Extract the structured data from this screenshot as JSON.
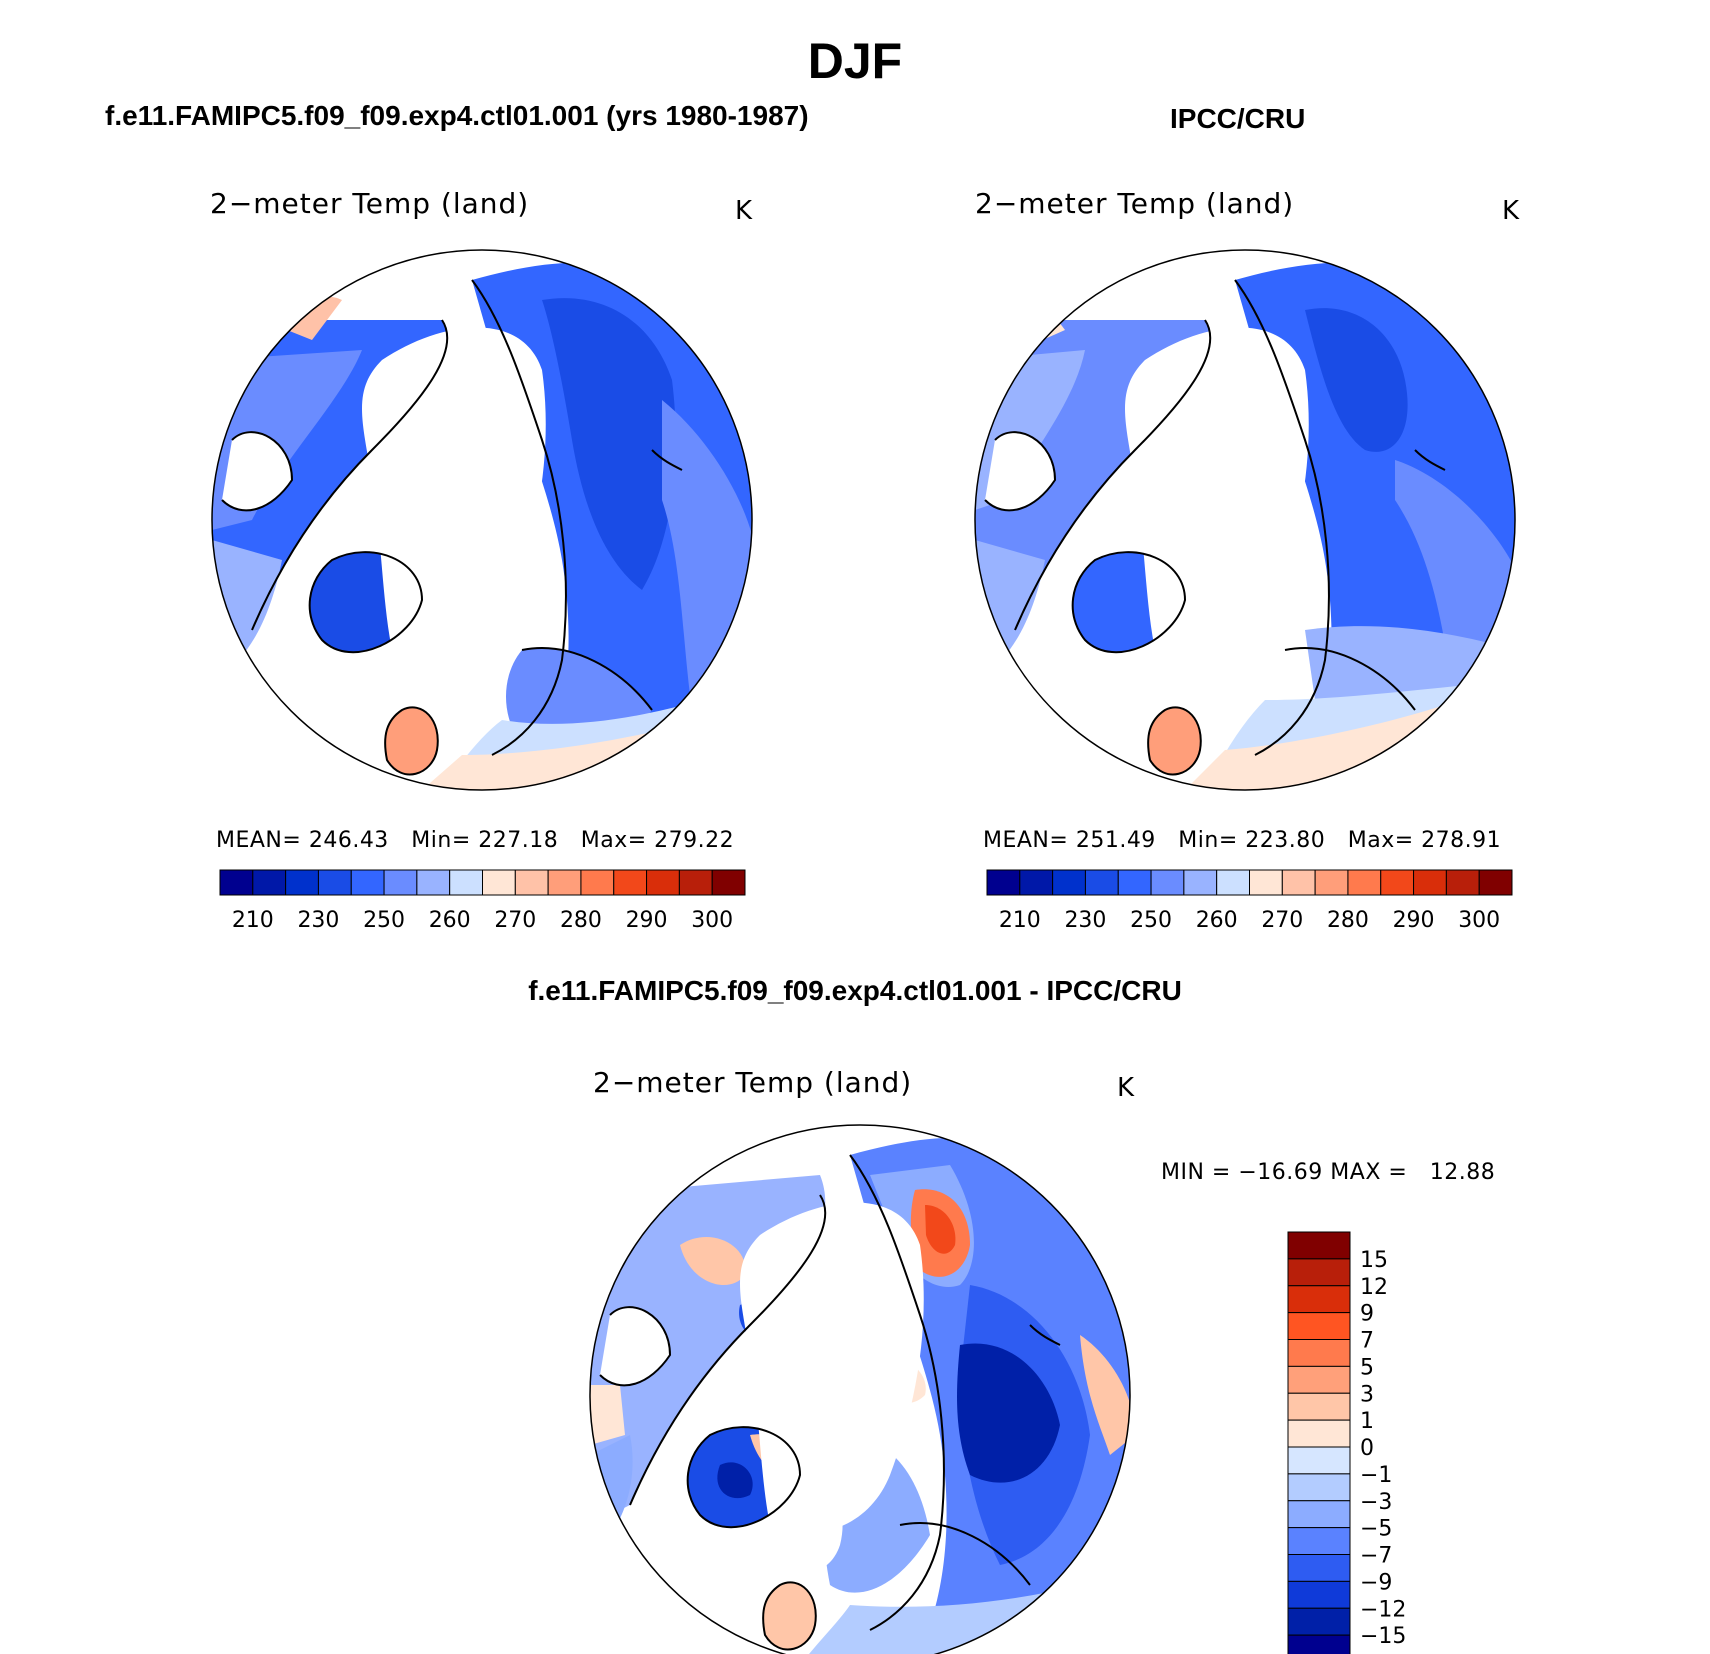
{
  "figure": {
    "season_title": "DJF",
    "panels": [
      {
        "id": "model",
        "header": "f.e11.FAMIPC5.f09_f09.exp4.ctl01.001 (yrs 1980-1987)",
        "plot_title": "2−meter Temp (land)",
        "units": "K",
        "stats": {
          "mean_label": "MEAN=",
          "mean": "246.43",
          "min_label": "Min=",
          "min": "227.18",
          "max_label": "Max=",
          "max": "279.22"
        }
      },
      {
        "id": "obs",
        "header": "IPCC/CRU",
        "plot_title": "2−meter Temp (land)",
        "units": "K",
        "stats": {
          "mean_label": "MEAN=",
          "mean": "251.49",
          "min_label": "Min=",
          "min": "223.80",
          "max_label": "Max=",
          "max": "278.91"
        }
      },
      {
        "id": "diff",
        "header": "f.e11.FAMIPC5.f09_f09.exp4.ctl01.001 - IPCC/CRU",
        "plot_title": "2−meter Temp (land)",
        "units": "K",
        "stats": {
          "min_label": "MIN =",
          "min": "−16.69",
          "max_label": "MAX =",
          "max": "12.88"
        }
      }
    ]
  },
  "chart_data": [
    {
      "type": "heatmap",
      "projection": "north-polar-stereographic",
      "title": "2−meter Temp (land)",
      "units": "K",
      "mean": 246.43,
      "min": 227.18,
      "max": 279.22,
      "colorbar": {
        "orientation": "horizontal",
        "levels": [
          210,
          220,
          230,
          240,
          250,
          255,
          260,
          265,
          270,
          275,
          280,
          285,
          290,
          295,
          300
        ],
        "tick_labels": [
          "210",
          "230",
          "250",
          "260",
          "270",
          "280",
          "290",
          "300"
        ],
        "colors": [
          "#00008f",
          "#0018a8",
          "#0031cc",
          "#1a4ce6",
          "#3366ff",
          "#6a8cff",
          "#99b3ff",
          "#cce0ff",
          "#ffe6d6",
          "#ffc2a8",
          "#ff9e7a",
          "#ff7a4d",
          "#f2481a",
          "#d92e0a",
          "#b81f0a",
          "#800000"
        ]
      }
    },
    {
      "type": "heatmap",
      "projection": "north-polar-stereographic",
      "title": "2−meter Temp (land)",
      "units": "K",
      "mean": 251.49,
      "min": 223.8,
      "max": 278.91,
      "colorbar": {
        "orientation": "horizontal",
        "levels": [
          210,
          220,
          230,
          240,
          250,
          255,
          260,
          265,
          270,
          275,
          280,
          285,
          290,
          295,
          300
        ],
        "tick_labels": [
          "210",
          "230",
          "250",
          "260",
          "270",
          "280",
          "290",
          "300"
        ],
        "colors": [
          "#00008f",
          "#0018a8",
          "#0031cc",
          "#1a4ce6",
          "#3366ff",
          "#6a8cff",
          "#99b3ff",
          "#cce0ff",
          "#ffe6d6",
          "#ffc2a8",
          "#ff9e7a",
          "#ff7a4d",
          "#f2481a",
          "#d92e0a",
          "#b81f0a",
          "#800000"
        ]
      }
    },
    {
      "type": "heatmap",
      "projection": "north-polar-stereographic",
      "title": "2−meter Temp (land)",
      "units": "K",
      "min": -16.69,
      "max": 12.88,
      "colorbar": {
        "orientation": "vertical",
        "tick_labels": [
          "15",
          "12",
          "9",
          "7",
          "5",
          "3",
          "1",
          "0",
          "−1",
          "−3",
          "−5",
          "−7",
          "−9",
          "−12",
          "−15"
        ],
        "colors": [
          "#800000",
          "#b81f0a",
          "#d92e0a",
          "#ff5522",
          "#ff7a4d",
          "#ffa07a",
          "#ffc6a8",
          "#ffe6d6",
          "#d6e6ff",
          "#b3ccff",
          "#8cacff",
          "#5a82ff",
          "#2e5cf2",
          "#0f3ad9",
          "#0020a8",
          "#00008f"
        ]
      }
    }
  ]
}
